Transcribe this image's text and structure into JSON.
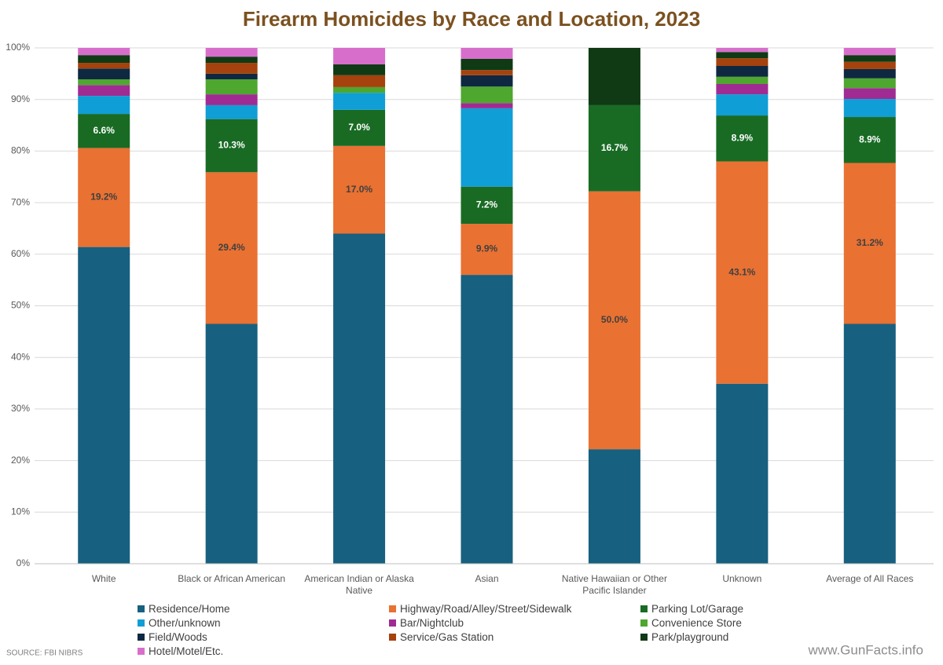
{
  "chart_data": {
    "type": "stacked_bar",
    "title": "Firearm Homicides by Race and Location, 2023",
    "source": "SOURCE: FBI NIBRS",
    "credit": "www.GunFacts.info",
    "categories": [
      "White",
      "Black or African American",
      "American Indian or Alaska Native",
      "Asian",
      "Native Hawaiian or Other Pacific Islander",
      "Unknown",
      "Average of All Races"
    ],
    "ylim": [
      0,
      100
    ],
    "yticks": [
      {
        "value": 0,
        "label": "0%"
      },
      {
        "value": 10,
        "label": "10%"
      },
      {
        "value": 20,
        "label": "20%"
      },
      {
        "value": 30,
        "label": "30%"
      },
      {
        "value": 40,
        "label": "40%"
      },
      {
        "value": 50,
        "label": "50%"
      },
      {
        "value": 60,
        "label": "60%"
      },
      {
        "value": 70,
        "label": "70%"
      },
      {
        "value": 80,
        "label": "80%"
      },
      {
        "value": 90,
        "label": "90%"
      },
      {
        "value": 100,
        "label": "100%"
      }
    ],
    "grid": true,
    "series": [
      {
        "name": "Residence/Home",
        "color": "#17607f",
        "values": [
          61.4,
          46.5,
          64.0,
          56.0,
          22.2,
          34.9,
          46.5
        ]
      },
      {
        "name": "Highway/Road/Alley/Street/Sidewalk",
        "color": "#e97132",
        "label_color": "#404040",
        "values": [
          19.2,
          29.4,
          17.0,
          9.9,
          50.0,
          43.1,
          31.2
        ],
        "value_labels": [
          "19.2%",
          "29.4%",
          "17.0%",
          "9.9%",
          "50.0%",
          "43.1%",
          "31.2%"
        ]
      },
      {
        "name": "Parking Lot/Garage",
        "color": "#196b24",
        "label_color": "#ffffff",
        "values": [
          6.6,
          10.3,
          7.0,
          7.2,
          16.7,
          8.9,
          8.9
        ],
        "value_labels": [
          "6.6%",
          "10.3%",
          "7.0%",
          "7.2%",
          "16.7%",
          "8.9%",
          "8.9%"
        ]
      },
      {
        "name": "Other/unknown",
        "color": "#0f9ed5",
        "values": [
          3.5,
          2.7,
          3.3,
          15.2,
          0,
          4.1,
          3.5
        ]
      },
      {
        "name": "Bar/Nightclub",
        "color": "#a02b93",
        "values": [
          2.1,
          2.1,
          0,
          1.0,
          0,
          2.0,
          2.1
        ]
      },
      {
        "name": "Convenience Store",
        "color": "#4ea72e",
        "values": [
          1.1,
          2.9,
          1.1,
          3.2,
          0,
          1.4,
          1.9
        ]
      },
      {
        "name": "Field/Woods",
        "color": "#0e2841",
        "values": [
          2.1,
          1.1,
          0,
          2.2,
          0,
          2.1,
          1.8
        ]
      },
      {
        "name": "Service/Gas Station",
        "color": "#a5420d",
        "values": [
          1.1,
          2.1,
          2.3,
          1.0,
          0,
          1.5,
          1.4
        ]
      },
      {
        "name": "Park/playground",
        "color": "#0f3a14",
        "values": [
          1.5,
          1.2,
          2.1,
          2.2,
          11.1,
          1.2,
          1.3
        ]
      },
      {
        "name": "Hotel/Motel/Etc.",
        "color": "#d86ecc",
        "values": [
          1.4,
          1.7,
          3.2,
          2.1,
          0,
          0.8,
          1.4
        ]
      }
    ]
  }
}
